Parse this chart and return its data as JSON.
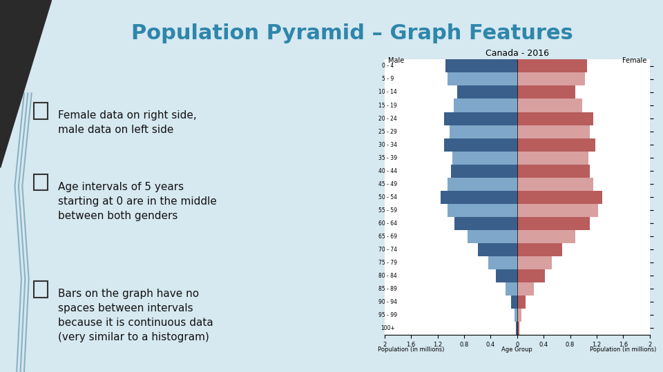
{
  "title": "Population Pyramid – Graph Features",
  "title_color": "#2E86AB",
  "slide_bg": "#d6e8f0",
  "left_panel_bg": "#c8dde8",
  "bullet_points": [
    "Female data on right side,\nmale data on left side",
    "Age intervals of 5 years\nstarting at 0 are in the middle\nbetween both genders",
    "Bars on the graph have no\nspaces between intervals\nbecause it is continuous data\n(very similar to a histogram)"
  ],
  "pyramid_title": "Canada - 2016",
  "age_groups": [
    "100+",
    "95 - 99",
    "90 - 94",
    "85 - 89",
    "80 - 84",
    "75 - 79",
    "70 - 74",
    "65 - 69",
    "60 - 64",
    "55 - 59",
    "50 - 54",
    "45 - 49",
    "40 - 44",
    "35 - 39",
    "30 - 34",
    "25 - 29",
    "20 - 24",
    "15 - 19",
    "10 - 14",
    "5 - 9",
    "0 - 4"
  ],
  "male_values": [
    0.02,
    0.04,
    0.09,
    0.18,
    0.32,
    0.44,
    0.59,
    0.75,
    0.95,
    1.05,
    1.15,
    1.05,
    1.0,
    0.98,
    1.1,
    1.02,
    1.1,
    0.96,
    0.9,
    1.05,
    1.08
  ],
  "female_values": [
    0.03,
    0.06,
    0.13,
    0.25,
    0.42,
    0.52,
    0.68,
    0.88,
    1.1,
    1.22,
    1.28,
    1.15,
    1.1,
    1.08,
    1.18,
    1.1,
    1.15,
    0.98,
    0.88,
    1.02,
    1.05
  ],
  "male_dark_color": "#3a5f8a",
  "male_light_color": "#7fa7c9",
  "female_dark_color": "#b85c5c",
  "female_light_color": "#d9a0a0",
  "xlim": 2.0,
  "xlabel_left": "Population (in millions)",
  "xlabel_right": "Population (in millions)",
  "xlabel_center": "Age Group",
  "male_label": "Male",
  "female_label": "Female",
  "tick_values": [
    2,
    1.6,
    1.2,
    0.8,
    0.4,
    0
  ]
}
